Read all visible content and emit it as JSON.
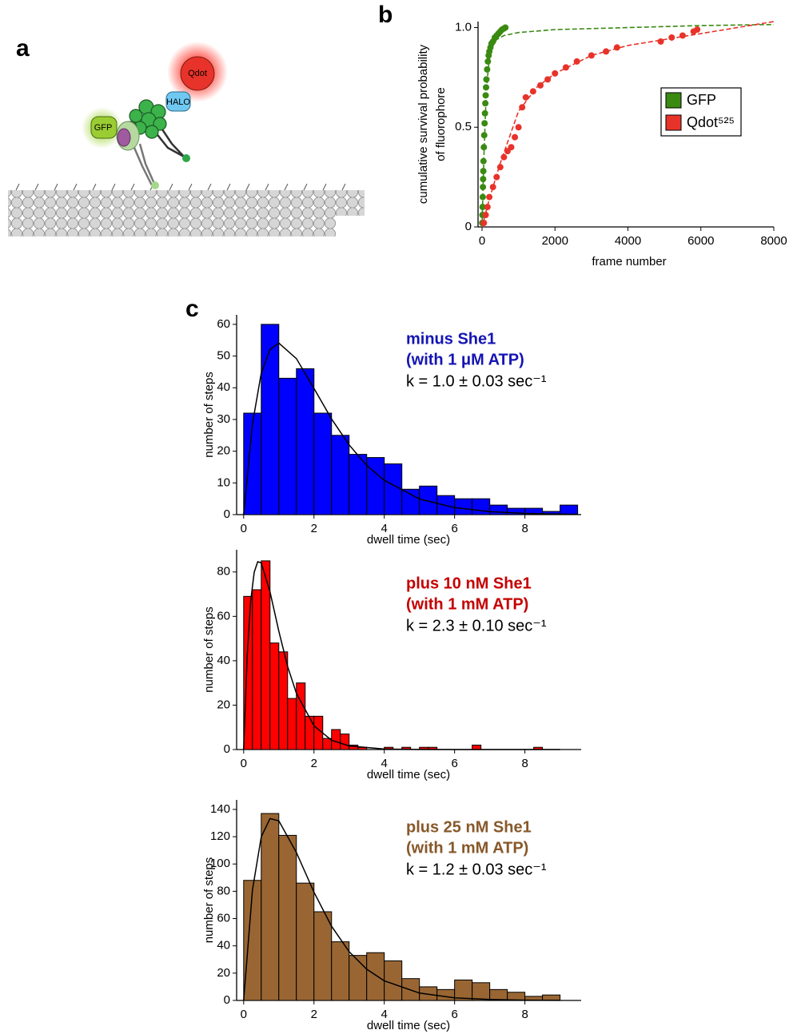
{
  "panel_labels": [
    "a",
    "b",
    "c"
  ],
  "diagram": {
    "labels": [
      "Qdot",
      "HALO",
      "GFP"
    ]
  },
  "chart_data": [
    {
      "type": "scatter",
      "xlabel": "frame number",
      "ylabel": [
        "cumulative survival probability",
        "of fluorophore"
      ],
      "xlim": [
        0,
        8000
      ],
      "xticks": [
        0,
        2000,
        4000,
        6000,
        8000
      ],
      "ylim": [
        0,
        1.03
      ],
      "yticks": [
        0,
        0.5,
        {
          "value": 1,
          "label": "1.0"
        }
      ],
      "legend": "upper right",
      "series": [
        {
          "name": "GFP",
          "color": "#3a8a12",
          "x": [
            5,
            10,
            15,
            20,
            25,
            30,
            35,
            40,
            50,
            60,
            70,
            80,
            90,
            100,
            110,
            120,
            140,
            160,
            180,
            200,
            230,
            260,
            300,
            350,
            400,
            450,
            500,
            550,
            600,
            640
          ],
          "values": [
            0.02,
            0.06,
            0.1,
            0.15,
            0.2,
            0.24,
            0.28,
            0.33,
            0.4,
            0.46,
            0.52,
            0.57,
            0.62,
            0.66,
            0.7,
            0.74,
            0.79,
            0.83,
            0.86,
            0.88,
            0.9,
            0.92,
            0.93,
            0.95,
            0.96,
            0.97,
            0.98,
            0.99,
            0.995,
            1.0
          ]
        },
        {
          "name": "Qdot⁵²⁵",
          "color": "#e8332a",
          "x": [
            50,
            100,
            150,
            200,
            300,
            400,
            500,
            600,
            700,
            800,
            900,
            1000,
            1100,
            1200,
            1400,
            1600,
            1800,
            2000,
            2300,
            2600,
            3000,
            3400,
            3700,
            4900,
            5200,
            5500,
            5800,
            5900
          ],
          "values": [
            0.02,
            0.06,
            0.1,
            0.15,
            0.2,
            0.25,
            0.3,
            0.35,
            0.38,
            0.4,
            0.45,
            0.5,
            0.6,
            0.65,
            0.68,
            0.71,
            0.74,
            0.77,
            0.8,
            0.83,
            0.86,
            0.88,
            0.9,
            0.93,
            0.95,
            0.96,
            0.98,
            0.99
          ]
        }
      ],
      "fits": [
        {
          "color": "#3a8a12",
          "x": [
            0,
            50,
            100,
            150,
            200,
            300,
            400,
            600,
            1000,
            2000,
            4000,
            6000,
            8000
          ],
          "values": [
            0,
            0.35,
            0.6,
            0.75,
            0.84,
            0.91,
            0.94,
            0.96,
            0.975,
            0.99,
            1.0,
            1.01,
            1.015
          ]
        },
        {
          "color": "#e8332a",
          "x": [
            0,
            200,
            500,
            1000,
            1500,
            2000,
            3000,
            4000,
            5000,
            6000,
            7000,
            8000
          ],
          "values": [
            0,
            0.14,
            0.32,
            0.58,
            0.7,
            0.77,
            0.86,
            0.91,
            0.94,
            0.97,
            1.0,
            1.03
          ]
        }
      ]
    },
    {
      "type": "histogram",
      "color": "#0000ff",
      "xlabel": "dwell time (sec)",
      "ylabel": "number of steps",
      "annotation": [
        "minus She1",
        "(with 1 μM ATP)"
      ],
      "annotation_color": "#1414b4",
      "rate_label": "k = 1.0 ± 0.03 sec⁻¹",
      "xlim": [
        -0.2,
        9.6
      ],
      "xticks": [
        0,
        2,
        4,
        6,
        8
      ],
      "ylim": [
        0,
        63
      ],
      "yticks": [
        0,
        10,
        20,
        30,
        40,
        50,
        60
      ],
      "bins": [
        0,
        0.5,
        1,
        1.5,
        2,
        2.5,
        3,
        3.5,
        4,
        4.5,
        5,
        5.5,
        6,
        6.5,
        7,
        7.5,
        8,
        8.5,
        9,
        9.5
      ],
      "counts": [
        32,
        60,
        43,
        46,
        32,
        25,
        19,
        18,
        16,
        8,
        9,
        6,
        5,
        5,
        3,
        2,
        2,
        1,
        3
      ],
      "fit": {
        "color": "#000000",
        "x": [
          0,
          0.25,
          0.5,
          0.75,
          1,
          1.5,
          2,
          2.5,
          3,
          3.5,
          4,
          5,
          6,
          7,
          8,
          9,
          9.5
        ],
        "values": [
          0,
          28.6,
          44.6,
          52.1,
          54.1,
          49.2,
          39.8,
          30.2,
          22.0,
          15.5,
          10.8,
          4.95,
          2.19,
          0.94,
          0.39,
          0.16,
          0.1
        ]
      }
    },
    {
      "type": "histogram",
      "color": "#ff0000",
      "xlabel": "dwell time (sec)",
      "ylabel": "number of steps",
      "annotation": [
        "plus 10 nM She1",
        "(with 1 mM ATP)"
      ],
      "annotation_color": "#c40000",
      "rate_label": "k = 2.3 ± 0.10 sec⁻¹",
      "xlim": [
        -0.2,
        9.6
      ],
      "xticks": [
        0,
        2,
        4,
        6,
        8
      ],
      "ylim": [
        0,
        90
      ],
      "yticks": [
        0,
        20,
        40,
        60,
        80
      ],
      "bins": [
        0,
        0.25,
        0.5,
        0.75,
        1,
        1.25,
        1.5,
        1.75,
        2,
        2.25,
        2.5,
        2.75,
        3,
        3.25,
        3.5,
        3.75,
        4,
        4.25,
        4.5,
        4.75,
        5,
        5.25,
        5.5,
        5.75,
        6,
        6.25,
        6.5,
        6.75,
        7,
        7.25,
        7.5,
        7.75,
        8,
        8.25,
        8.5,
        8.75,
        9
      ],
      "counts": [
        69,
        72,
        85,
        48,
        44,
        23,
        30,
        15,
        15,
        5,
        9,
        7,
        2,
        1,
        0,
        0,
        1,
        0,
        1,
        0,
        1,
        1,
        0,
        0,
        0,
        0,
        2,
        0,
        0,
        0,
        0,
        0,
        0,
        1,
        0,
        0
      ],
      "fit": {
        "color": "#000000",
        "x": [
          0,
          0.1,
          0.2,
          0.3,
          0.4,
          0.5,
          0.75,
          1,
          1.25,
          1.5,
          2,
          2.5,
          3,
          4,
          5,
          6,
          9
        ],
        "values": [
          0,
          42.2,
          67.0,
          79.9,
          84.6,
          84.1,
          71.0,
          53.3,
          37.4,
          25.3,
          10.7,
          4.22,
          1.61,
          0.21,
          0.02,
          0,
          0
        ]
      }
    },
    {
      "type": "histogram",
      "color": "#996633",
      "xlabel": "dwell time (sec)",
      "ylabel": "number of steps",
      "annotation": [
        "plus 25 nM She1",
        "(with 1 mM ATP)"
      ],
      "annotation_color": "#87582a",
      "rate_label": "k = 1.2 ± 0.03 sec⁻¹",
      "xlim": [
        -0.2,
        9.6
      ],
      "xticks": [
        0,
        2,
        4,
        6,
        8
      ],
      "ylim": [
        0,
        147
      ],
      "yticks": [
        0,
        20,
        40,
        60,
        80,
        100,
        120,
        140
      ],
      "bins": [
        0,
        0.5,
        1,
        1.5,
        2,
        2.5,
        3,
        3.5,
        4,
        4.5,
        5,
        5.5,
        6,
        6.5,
        7,
        7.5,
        8,
        8.5,
        9
      ],
      "counts": [
        88,
        137,
        121,
        86,
        65,
        43,
        33,
        35,
        29,
        16,
        10,
        8,
        15,
        13,
        8,
        6,
        3,
        4
      ],
      "fit": {
        "color": "#000000",
        "x": [
          0,
          0.25,
          0.5,
          0.75,
          1,
          1.5,
          2,
          2.5,
          3,
          3.5,
          4,
          5,
          6,
          7,
          8,
          9
        ],
        "values": [
          0,
          80.9,
          119.9,
          133.3,
          131.6,
          108.4,
          79.3,
          54.4,
          35.8,
          22.9,
          14.4,
          5.4,
          1.96,
          0.69,
          0.24,
          0.08
        ]
      }
    }
  ]
}
